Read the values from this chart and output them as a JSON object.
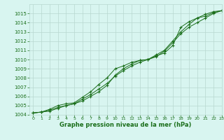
{
  "hours": [
    0,
    1,
    2,
    3,
    4,
    5,
    6,
    7,
    8,
    9,
    10,
    11,
    12,
    13,
    14,
    15,
    16,
    17,
    18,
    19,
    20,
    21,
    22,
    23
  ],
  "line1": [
    1004.2,
    1004.3,
    1004.6,
    1005.0,
    1005.2,
    1005.3,
    1005.9,
    1006.5,
    1007.3,
    1008.0,
    1009.0,
    1009.3,
    1009.7,
    1009.9,
    1010.0,
    1010.5,
    1011.0,
    1012.0,
    1013.0,
    1013.8,
    1014.5,
    1014.7,
    1015.1,
    1015.3
  ],
  "line2": [
    1004.2,
    1004.3,
    1004.5,
    1004.8,
    1005.0,
    1005.2,
    1005.7,
    1006.2,
    1006.8,
    1007.4,
    1008.2,
    1008.8,
    1009.3,
    1009.7,
    1010.0,
    1010.3,
    1010.9,
    1011.8,
    1012.8,
    1013.5,
    1014.0,
    1014.5,
    1015.0,
    1015.3
  ],
  "line3": [
    1004.2,
    1004.3,
    1004.4,
    1004.7,
    1005.0,
    1005.2,
    1005.5,
    1006.0,
    1006.5,
    1007.2,
    1008.3,
    1009.0,
    1009.5,
    1009.9,
    1010.0,
    1010.4,
    1010.7,
    1011.5,
    1013.5,
    1014.1,
    1014.5,
    1014.9,
    1015.2,
    1015.3
  ],
  "line_color": "#1a6e1a",
  "bg_color": "#d8f5f0",
  "grid_color": "#b8d8d0",
  "xlabel": "Graphe pression niveau de la mer (hPa)",
  "ylim": [
    1004,
    1016
  ],
  "yticks": [
    1004,
    1005,
    1006,
    1007,
    1008,
    1009,
    1010,
    1011,
    1012,
    1013,
    1014,
    1015
  ],
  "xlim": [
    -0.5,
    23
  ],
  "xticks": [
    0,
    1,
    2,
    3,
    4,
    5,
    6,
    7,
    8,
    9,
    10,
    11,
    12,
    13,
    14,
    15,
    16,
    17,
    18,
    19,
    20,
    21,
    22,
    23
  ]
}
